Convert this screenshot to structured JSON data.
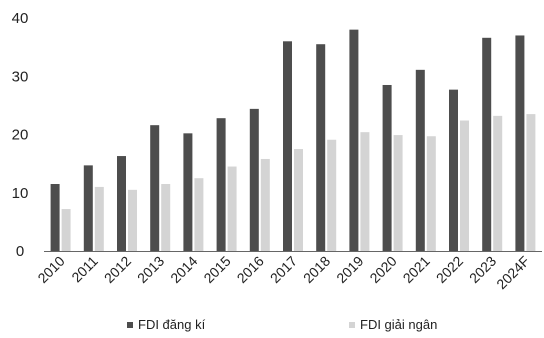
{
  "chart_data": {
    "type": "bar",
    "categories": [
      "2010",
      "2011",
      "2012",
      "2013",
      "2014",
      "2015",
      "2016",
      "2017",
      "2018",
      "2019",
      "2020",
      "2021",
      "2022",
      "2023",
      "2024F"
    ],
    "series": [
      {
        "name": "FDI đăng kí",
        "color": "#4d4d4d",
        "values": [
          11.5,
          14.7,
          16.3,
          21.6,
          20.2,
          22.8,
          24.4,
          36.0,
          35.5,
          38.0,
          28.5,
          31.1,
          27.7,
          36.6,
          37.0
        ]
      },
      {
        "name": "FDI giải ngân",
        "color": "#d4d4d4",
        "values": [
          7.2,
          11.0,
          10.5,
          11.5,
          12.5,
          14.5,
          15.8,
          17.5,
          19.1,
          20.4,
          19.9,
          19.7,
          22.4,
          23.2,
          23.5
        ]
      }
    ],
    "y_ticks": [
      "0",
      "10",
      "20",
      "30",
      "40"
    ],
    "ylim": [
      0,
      40
    ],
    "grid": false,
    "legend": "bottom"
  }
}
